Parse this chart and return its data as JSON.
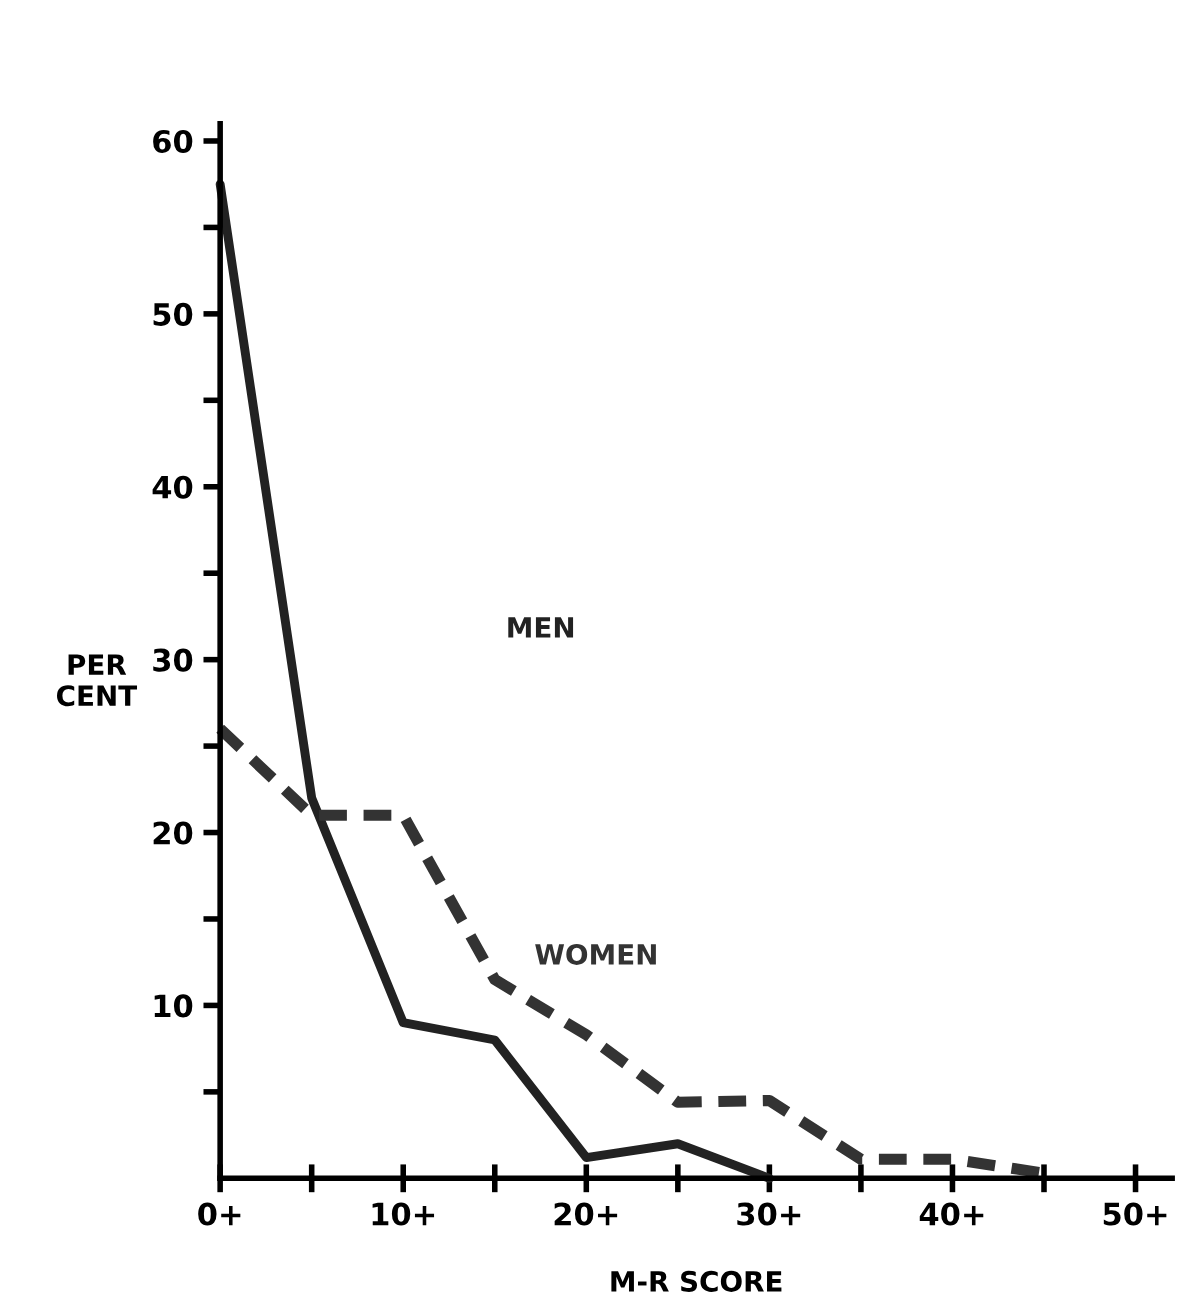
{
  "chart_data": {
    "type": "line",
    "xlabel": "M-R SCORE",
    "ylabel": "PER\nCENT",
    "categories": [
      "0+",
      null,
      "10+",
      null,
      "20+",
      null,
      "30+",
      null,
      "40+",
      null,
      "50+"
    ],
    "series": [
      {
        "name": "MEN",
        "color": "#222222",
        "line_style": "solid",
        "values": [
          57.5,
          22,
          9,
          8,
          1.2,
          2,
          0,
          null,
          null,
          null,
          null
        ]
      },
      {
        "name": "WOMEN",
        "color": "#333333",
        "line_style": "dashed",
        "values": [
          26,
          21,
          21,
          11.5,
          8.3,
          4.4,
          4.5,
          1.1,
          1.1,
          0.3,
          null
        ]
      }
    ],
    "ylim": [
      0,
      61
    ],
    "yticks": [
      {
        "value": 5,
        "label": null
      },
      10,
      {
        "value": 15,
        "label": null
      },
      20,
      {
        "value": 25,
        "label": null
      },
      30,
      {
        "value": 35,
        "label": null
      },
      40,
      {
        "value": 45,
        "label": null
      },
      50,
      {
        "value": 55,
        "label": null
      },
      60
    ],
    "grid": false,
    "legend": false,
    "marker": "none"
  }
}
